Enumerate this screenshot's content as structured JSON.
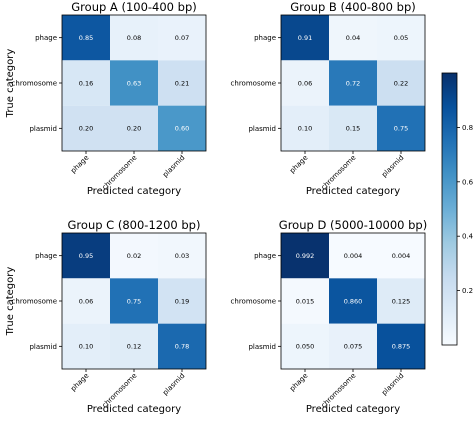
{
  "chart_data": [
    {
      "type": "heatmap",
      "title": "Group A (100-400 bp)",
      "xlabel": "Predicted category",
      "ylabel": "True category",
      "categories": [
        "phage",
        "chromosome",
        "plasmid"
      ],
      "values": [
        [
          "0.85",
          "0.08",
          "0.07"
        ],
        [
          "0.16",
          "0.63",
          "0.21"
        ],
        [
          "0.20",
          "0.20",
          "0.60"
        ]
      ]
    },
    {
      "type": "heatmap",
      "title": "Group B (400-800 bp)",
      "xlabel": "Predicted category",
      "ylabel": "",
      "categories": [
        "phage",
        "chromosome",
        "plasmid"
      ],
      "values": [
        [
          "0.91",
          "0.04",
          "0.05"
        ],
        [
          "0.06",
          "0.72",
          "0.22"
        ],
        [
          "0.10",
          "0.15",
          "0.75"
        ]
      ]
    },
    {
      "type": "heatmap",
      "title": "Group C (800-1200 bp)",
      "xlabel": "Predicted category",
      "ylabel": "True category",
      "categories": [
        "phage",
        "chromosome",
        "plasmid"
      ],
      "values": [
        [
          "0.95",
          "0.02",
          "0.03"
        ],
        [
          "0.06",
          "0.75",
          "0.19"
        ],
        [
          "0.10",
          "0.12",
          "0.78"
        ]
      ]
    },
    {
      "type": "heatmap",
      "title": "Group D (5000-10000 bp)",
      "xlabel": "Predicted category",
      "ylabel": "",
      "categories": [
        "phage",
        "chromosome",
        "plasmid"
      ],
      "values": [
        [
          "0.992",
          "0.004",
          "0.004"
        ],
        [
          "0.015",
          "0.860",
          "0.125"
        ],
        [
          "0.050",
          "0.075",
          "0.875"
        ]
      ]
    }
  ],
  "colorbar": {
    "colormap": "Blues",
    "range": [
      0,
      1
    ],
    "tick_labels": [
      "0.2",
      "0.4",
      "0.6",
      "0.8"
    ]
  }
}
